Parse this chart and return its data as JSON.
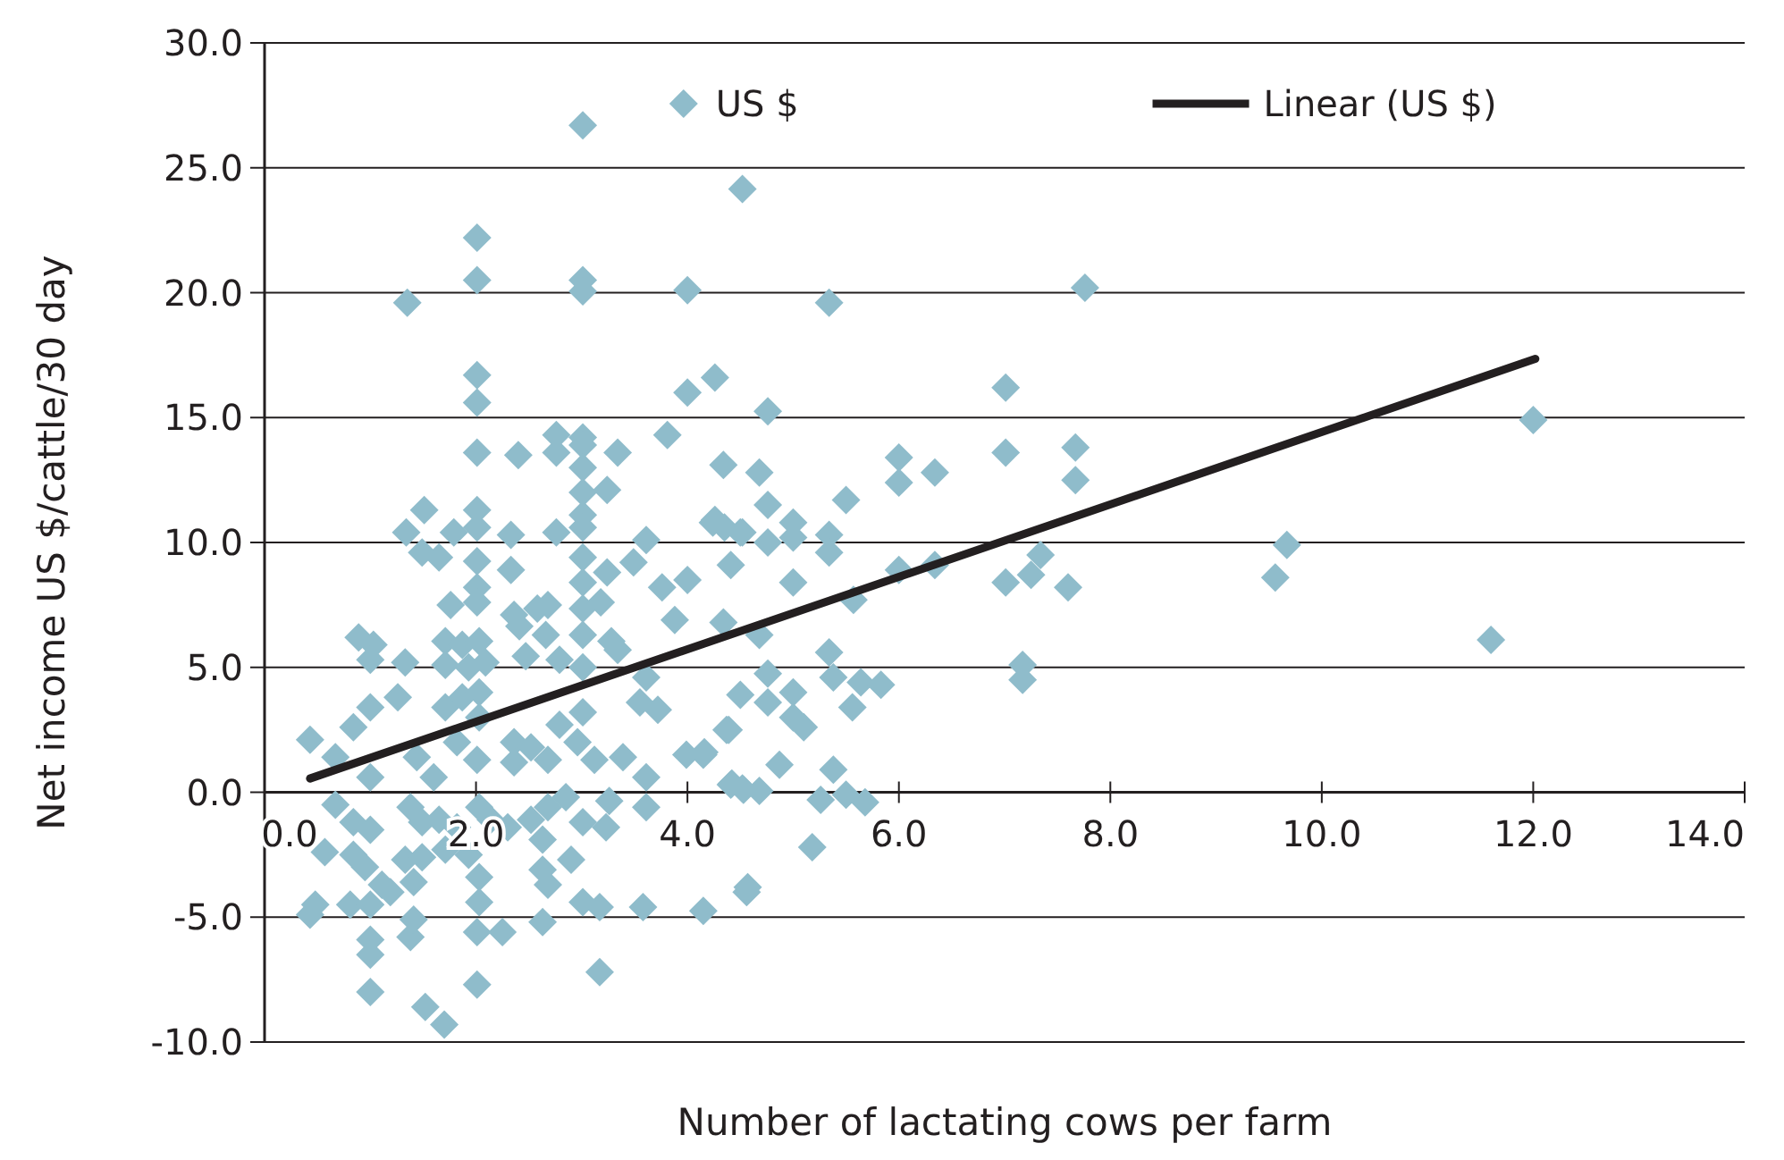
{
  "chart_data": {
    "type": "scatter",
    "xlabel": "Number of lactating cows per farm",
    "ylabel": "Net income US $/cattle/30 day",
    "xlim": [
      0,
      14
    ],
    "ylim": [
      -10,
      30
    ],
    "xticks": [
      {
        "value": 0,
        "label": "0.0"
      },
      {
        "value": 2,
        "label": "2.0"
      },
      {
        "value": 4,
        "label": "4.0"
      },
      {
        "value": 6,
        "label": "6.0"
      },
      {
        "value": 8,
        "label": "8.0"
      },
      {
        "value": 10,
        "label": "10.0"
      },
      {
        "value": 12,
        "label": "12.0"
      },
      {
        "value": 14,
        "label": "14.0"
      }
    ],
    "yticks": [
      {
        "value": -10,
        "label": "-10.0"
      },
      {
        "value": -5,
        "label": "-5.0"
      },
      {
        "value": 0,
        "label": "0.0"
      },
      {
        "value": 5,
        "label": "5.0"
      },
      {
        "value": 10,
        "label": "10.0"
      },
      {
        "value": 15,
        "label": "15.0"
      },
      {
        "value": 20,
        "label": "20.0"
      },
      {
        "value": 25,
        "label": "25.0"
      },
      {
        "value": 30,
        "label": "30.0"
      }
    ],
    "grid": "y",
    "legend": "top",
    "series": [
      {
        "name": "US $",
        "color": "#8fbccb",
        "marker": "diamond",
        "x": [
          4.52,
          5.34,
          7.76,
          4.26,
          4.76,
          7.01,
          7.01,
          7.67,
          7.67,
          4.34,
          4.68,
          4.76,
          5.5,
          6.0,
          6.0,
          6.34,
          4.26,
          4.52,
          4.76,
          5.0,
          5.0,
          5.34,
          5.34,
          4.41,
          5.0,
          6.0,
          6.34,
          7.01,
          7.25,
          7.34,
          7.6,
          5.57,
          4.34,
          4.68,
          5.34,
          5.38,
          4.76,
          5.0,
          4.5,
          4.76,
          5.64,
          5.83,
          5.56,
          5.0,
          5.1,
          7.17,
          7.17,
          4.39,
          4.16,
          4.87,
          5.38,
          4.41,
          4.52,
          4.68,
          5.26,
          5.5,
          5.68,
          5.18,
          4.57,
          9.67,
          9.56,
          11.6,
          12.0,
          3.01,
          2.01,
          2.01,
          3.01,
          3.01,
          1.35,
          4.0,
          2.01,
          2.01,
          4.0,
          2.76,
          3.01,
          2.01,
          2.4,
          2.76,
          3.01,
          3.34,
          3.81,
          3.01,
          3.01,
          3.24,
          1.51,
          2.01,
          3.01,
          1.34,
          1.79,
          2.01,
          2.33,
          2.76,
          3.01,
          3.61,
          4.24,
          4.35,
          4.5,
          1.49,
          1.65,
          2.01,
          2.33,
          3.01,
          3.01,
          3.24,
          3.49,
          3.76,
          4.0,
          2.01,
          2.01,
          1.76,
          3.01,
          3.18,
          3.88,
          2.36,
          2.58,
          2.68,
          2.41,
          2.66,
          0.89,
          1.03,
          1.71,
          1.87,
          2.03,
          3.01,
          3.28,
          1.0,
          1.33,
          1.71,
          1.93,
          2.09,
          2.47,
          2.79,
          3.01,
          3.34,
          1.26,
          1.0,
          0.84,
          0.43,
          0.67,
          1.0,
          1.44,
          1.71,
          1.87,
          2.03,
          2.03,
          1.82,
          2.01,
          1.6,
          2.36,
          2.52,
          2.68,
          2.36,
          2.79,
          3.01,
          2.96,
          3.12,
          3.39,
          3.55,
          3.72,
          3.61,
          3.99,
          4.15,
          4.37,
          3.61,
          4.42,
          4.53,
          0.67,
          0.84,
          1.0,
          1.38,
          1.49,
          1.65,
          1.82,
          2.03,
          2.14,
          2.3,
          2.52,
          2.68,
          2.85,
          3.01,
          3.23,
          3.26,
          3.61,
          0.57,
          0.84,
          0.95,
          1.11,
          1.19,
          1.33,
          1.49,
          1.41,
          1.71,
          1.93,
          2.03,
          2.03,
          2.63,
          2.63,
          2.68,
          2.9,
          3.01,
          3.17,
          3.58,
          4.15,
          4.56,
          0.43,
          0.48,
          0.81,
          1.0,
          1.0,
          1.0,
          1.0,
          1.38,
          1.41,
          2.01,
          2.25,
          2.01,
          2.63,
          3.17,
          1.52,
          1.7
        ],
        "values": [
          24.15,
          19.6,
          20.2,
          16.6,
          15.25,
          16.2,
          13.6,
          13.8,
          12.5,
          13.1,
          12.8,
          11.5,
          11.7,
          13.4,
          12.4,
          12.8,
          10.9,
          10.4,
          10.0,
          10.8,
          10.2,
          10.3,
          9.6,
          9.1,
          8.4,
          8.9,
          9.1,
          8.4,
          8.7,
          9.5,
          8.2,
          7.7,
          6.8,
          6.3,
          5.6,
          4.6,
          4.75,
          4.0,
          3.9,
          3.6,
          4.4,
          4.3,
          3.4,
          3.0,
          2.6,
          5.1,
          4.5,
          2.5,
          1.6,
          1.1,
          0.9,
          0.3,
          0.15,
          0.05,
          -0.3,
          -0.1,
          -0.4,
          -2.2,
          -3.8,
          9.9,
          8.6,
          6.1,
          14.9,
          26.7,
          22.2,
          20.5,
          20.5,
          20.05,
          19.6,
          20.1,
          16.7,
          15.6,
          16.0,
          14.3,
          14.2,
          13.6,
          13.5,
          13.6,
          13.9,
          13.6,
          14.3,
          13.0,
          12.0,
          12.1,
          11.3,
          11.3,
          11.1,
          10.4,
          10.4,
          10.6,
          10.3,
          10.4,
          10.6,
          10.1,
          10.8,
          10.6,
          10.4,
          9.6,
          9.4,
          9.25,
          8.9,
          9.4,
          8.4,
          8.8,
          9.2,
          8.2,
          8.5,
          8.2,
          7.6,
          7.5,
          7.35,
          7.6,
          6.9,
          7.1,
          7.35,
          7.5,
          6.65,
          6.3,
          6.2,
          5.9,
          6.05,
          5.9,
          6.05,
          6.3,
          6.05,
          5.3,
          5.2,
          5.1,
          5.0,
          5.2,
          5.45,
          5.3,
          5.0,
          5.7,
          3.8,
          3.4,
          2.6,
          2.1,
          1.4,
          0.6,
          1.4,
          3.4,
          3.8,
          4.0,
          3.0,
          2.0,
          1.3,
          0.6,
          2.0,
          1.8,
          1.3,
          1.2,
          2.7,
          3.2,
          2.0,
          1.3,
          1.4,
          3.6,
          3.3,
          0.6,
          1.5,
          1.5,
          2.5,
          4.6,
          0.35,
          0.1,
          -0.5,
          -1.2,
          -1.5,
          -0.6,
          -1.2,
          -1.1,
          -1.4,
          -0.6,
          -1.1,
          -1.4,
          -1.1,
          -0.6,
          -0.2,
          -1.2,
          -1.4,
          -0.35,
          -0.6,
          -2.4,
          -2.5,
          -3.0,
          -3.7,
          -4.0,
          -2.7,
          -2.6,
          -3.6,
          -2.3,
          -2.5,
          -3.4,
          -4.4,
          -1.9,
          -3.1,
          -3.7,
          -2.7,
          -4.4,
          -4.6,
          -4.6,
          -4.75,
          -4.0,
          -4.9,
          -4.5,
          -4.5,
          -4.5,
          -5.9,
          -6.5,
          -8.0,
          -5.8,
          -5.1,
          -5.6,
          -5.6,
          -7.7,
          -5.2,
          -7.2,
          -8.6,
          -9.3
        ]
      },
      {
        "name": "Linear (US $)",
        "type": "line",
        "color": "#231f20",
        "line_style": "solid",
        "marker": "none",
        "x": [
          0.43,
          12.02
        ],
        "values": [
          0.55,
          17.35
        ]
      }
    ]
  }
}
